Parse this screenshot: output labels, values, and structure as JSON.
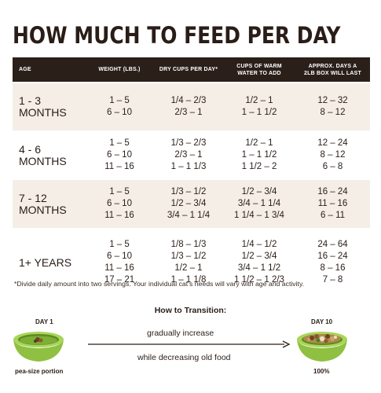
{
  "title": "HOW MUCH TO FEED PER DAY",
  "headers": {
    "age": "AGE",
    "weight": "WEIGHT (LBS.)",
    "dry": "DRY CUPS PER DAY*",
    "water_1": "CUPS OF WARM",
    "water_2": "WATER TO ADD",
    "days_1": "APPROX. DAYS A",
    "days_2": "2LB BOX WILL LAST"
  },
  "rows": [
    {
      "age": "1 - 3 MONTHS",
      "weight": [
        "1 – 5",
        "6 – 10"
      ],
      "dry": [
        "1/4 – 2/3",
        "2/3 – 1"
      ],
      "water": [
        "1/2 – 1",
        "1 – 1 1/2"
      ],
      "days": [
        "12 – 32",
        "8 – 12"
      ]
    },
    {
      "age": "4 - 6 MONTHS",
      "weight": [
        "1 – 5",
        "6 – 10",
        "11 – 16"
      ],
      "dry": [
        "1/3 – 2/3",
        "2/3 – 1",
        "1 – 1 1/3"
      ],
      "water": [
        "1/2 – 1",
        "1 – 1 1/2",
        "1 1/2 – 2"
      ],
      "days": [
        "12 – 24",
        "8 – 12",
        "6 – 8"
      ]
    },
    {
      "age": "7 - 12 MONTHS",
      "weight": [
        "1 – 5",
        "6 – 10",
        "11 – 16"
      ],
      "dry": [
        "1/3 – 1/2",
        "1/2 – 3/4",
        "3/4 – 1 1/4"
      ],
      "water": [
        "1/2 – 3/4",
        "3/4 – 1 1/4",
        "1 1/4 – 1 3/4"
      ],
      "days": [
        "16 – 24",
        "11 – 16",
        "6 – 11"
      ]
    },
    {
      "age": "1+ YEARS",
      "weight": [
        "1 – 5",
        "6 – 10",
        "11 – 16",
        "17 – 21"
      ],
      "dry": [
        "1/8 – 1/3",
        "1/3 – 1/2",
        "1/2 – 1",
        "1 – 1 1/8"
      ],
      "water": [
        "1/4 – 1/2",
        "1/2 – 3/4",
        "3/4 – 1 1/2",
        "1 1/2 – 1 2/3"
      ],
      "days": [
        "24 – 64",
        "16 – 24",
        "8 – 16",
        "7 – 8"
      ]
    }
  ],
  "footnote": "*Divide daily amount into two servings. Your individual cat’s needs will vary with age and activity.",
  "transition": {
    "heading": "How to Transition:",
    "day_start": "DAY 1",
    "day_end": "DAY 10",
    "increase": "gradually increase",
    "decrease": "while decreasing old food",
    "start_caption": "pea-size portion",
    "end_caption": "100%"
  },
  "colors": {
    "header_bg": "#2b1f1a",
    "band": "#f4eee6",
    "bowl_green": "#9ccc4c",
    "bowl_dark": "#6f9a2e"
  }
}
